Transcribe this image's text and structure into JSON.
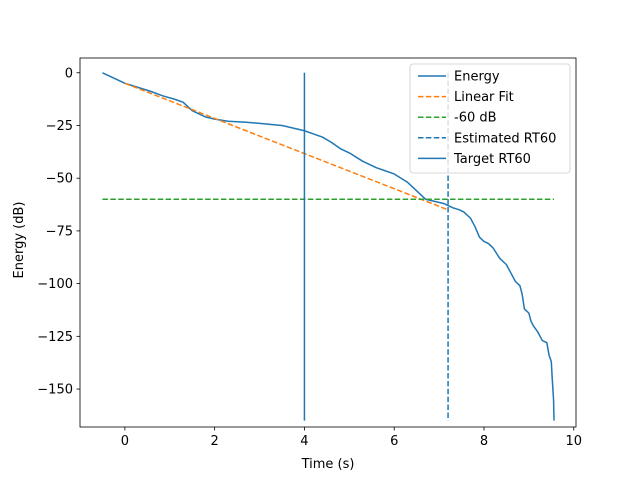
{
  "chart_data": {
    "type": "line",
    "title": "",
    "xlabel": "Time (s)",
    "ylabel": "Energy (dB)",
    "xlim": [
      -1.0,
      10.05
    ],
    "ylim": [
      -168,
      7
    ],
    "xticks": [
      0,
      2,
      4,
      6,
      8,
      10
    ],
    "yticks": [
      0,
      -25,
      -50,
      -75,
      -100,
      -125,
      -150
    ],
    "ytick_labels": [
      "0",
      "−25",
      "−50",
      "−75",
      "−100",
      "−125",
      "−150"
    ],
    "grid": false,
    "legend_position": "top-right",
    "colors": {
      "blue": "#1f77b4",
      "orange": "#ff7f0e",
      "green": "#2ca02c"
    },
    "series": [
      {
        "name": "Energy",
        "style": "solid",
        "color": "#1f77b4",
        "x": [
          -0.5,
          -0.35,
          -0.2,
          0.0,
          0.3,
          0.6,
          0.85,
          1.1,
          1.3,
          1.5,
          1.8,
          2.0,
          2.3,
          2.7,
          3.0,
          3.5,
          3.8,
          4.0,
          4.2,
          4.4,
          4.6,
          4.8,
          5.0,
          5.3,
          5.6,
          6.0,
          6.3,
          6.5,
          6.7,
          6.9,
          7.1,
          7.3,
          7.45,
          7.55,
          7.7,
          7.8,
          7.9,
          8.0,
          8.1,
          8.2,
          8.35,
          8.5,
          8.6,
          8.7,
          8.8,
          8.85,
          8.9,
          9.0,
          9.05,
          9.1,
          9.2,
          9.3,
          9.4,
          9.45,
          9.5,
          9.52,
          9.55,
          9.56
        ],
        "y": [
          0,
          -1.5,
          -3,
          -5,
          -7,
          -9,
          -11,
          -12.5,
          -14,
          -18,
          -21,
          -22,
          -23,
          -23.5,
          -24,
          -25,
          -26.5,
          -27.5,
          -29,
          -30.5,
          -33,
          -36,
          -38,
          -42,
          -45,
          -48,
          -52,
          -56,
          -60,
          -61,
          -62,
          -64,
          -65,
          -66,
          -69,
          -73,
          -78,
          -80,
          -81,
          -83,
          -88,
          -91,
          -95,
          -99,
          -101,
          -105,
          -112,
          -114,
          -118,
          -120,
          -123,
          -127,
          -128,
          -134,
          -137,
          -145,
          -155,
          -165
        ]
      },
      {
        "name": "Linear Fit",
        "style": "dashed",
        "color": "#ff7f0e",
        "x": [
          0.0,
          7.2
        ],
        "y": [
          -5,
          -65
        ]
      },
      {
        "name": "-60 dB",
        "style": "dashed",
        "color": "#2ca02c",
        "x": [
          -0.5,
          9.56
        ],
        "y": [
          -60,
          -60
        ]
      },
      {
        "name": "Estimated RT60",
        "style": "dashed",
        "color": "#1f77b4",
        "x": [
          7.2,
          7.2
        ],
        "y": [
          0,
          -165
        ]
      },
      {
        "name": "Target RT60",
        "style": "solid",
        "color": "#1f77b4",
        "x": [
          4.0,
          4.0
        ],
        "y": [
          0,
          -165
        ]
      }
    ]
  }
}
